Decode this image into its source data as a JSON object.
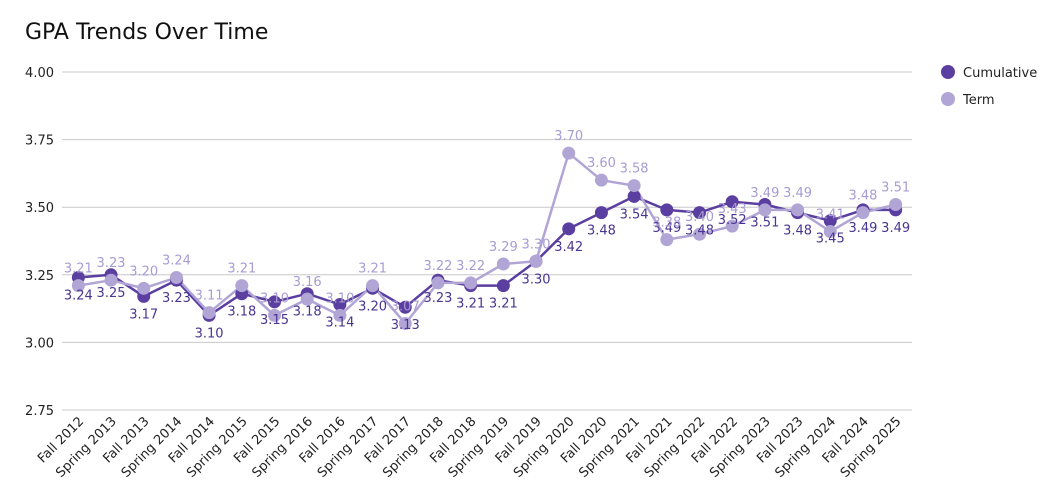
{
  "chart_data": {
    "type": "line",
    "title": "GPA Trends Over Time",
    "xlabel": "",
    "ylabel": "",
    "ylim": [
      2.75,
      4.0
    ],
    "yticks": [
      "2.75",
      "3.00",
      "3.25",
      "3.50",
      "3.75",
      "4.00"
    ],
    "grid": true,
    "legend_position": "top-right",
    "categories": [
      "Fall 2012",
      "Spring 2013",
      "Fall 2013",
      "Spring 2014",
      "Fall 2014",
      "Spring 2015",
      "Fall 2015",
      "Spring 2016",
      "Fall 2016",
      "Spring 2017",
      "Fall 2017",
      "Spring 2018",
      "Fall 2018",
      "Spring 2019",
      "Fall 2019",
      "Spring 2020",
      "Fall 2020",
      "Spring 2021",
      "Fall 2021",
      "Spring 2022",
      "Fall 2022",
      "Spring 2023",
      "Fall 2023",
      "Spring 2024",
      "Fall 2024",
      "Spring 2025"
    ],
    "series": [
      {
        "name": "Cumulative",
        "color": "#5b3fa0",
        "label_color": "#4a3590",
        "values": [
          3.24,
          3.25,
          3.17,
          3.23,
          3.1,
          3.18,
          3.15,
          3.18,
          3.14,
          3.2,
          3.13,
          3.23,
          3.21,
          3.21,
          3.3,
          3.42,
          3.48,
          3.54,
          3.49,
          3.48,
          3.52,
          3.51,
          3.48,
          3.45,
          3.49,
          3.49
        ],
        "labels": [
          "3.24",
          "3.25",
          "3.17",
          "3.23",
          "3.10",
          "3.18",
          "3.15",
          "3.18",
          "3.14",
          "3.20",
          "3.13",
          "3.23",
          "3.21",
          "3.21",
          "3.30",
          "3.42",
          "3.48",
          "3.54",
          "3.49",
          "3.48",
          "3.52",
          "3.51",
          "3.48",
          "3.45",
          "3.49",
          "3.49"
        ]
      },
      {
        "name": "Term",
        "color": "#b1a5d6",
        "label_color": "#a89cd2",
        "values": [
          3.21,
          3.23,
          3.2,
          3.24,
          3.11,
          3.21,
          3.1,
          3.16,
          3.1,
          3.21,
          3.07,
          3.22,
          3.22,
          3.29,
          3.3,
          3.7,
          3.6,
          3.58,
          3.38,
          3.4,
          3.43,
          3.49,
          3.49,
          3.41,
          3.48,
          3.51
        ],
        "labels": [
          "3.21",
          "3.23",
          "3.20",
          "3.24",
          "3.11",
          "3.21",
          "3.10",
          "3.16",
          "3.10",
          "3.21",
          "3.07",
          "3.22",
          "3.22",
          "3.29",
          "3.30",
          "3.70",
          "3.60",
          "3.58",
          "3.38",
          "3.40",
          "3.43",
          "3.49",
          "3.49",
          "3.41",
          "3.48",
          "3.51"
        ]
      }
    ]
  }
}
